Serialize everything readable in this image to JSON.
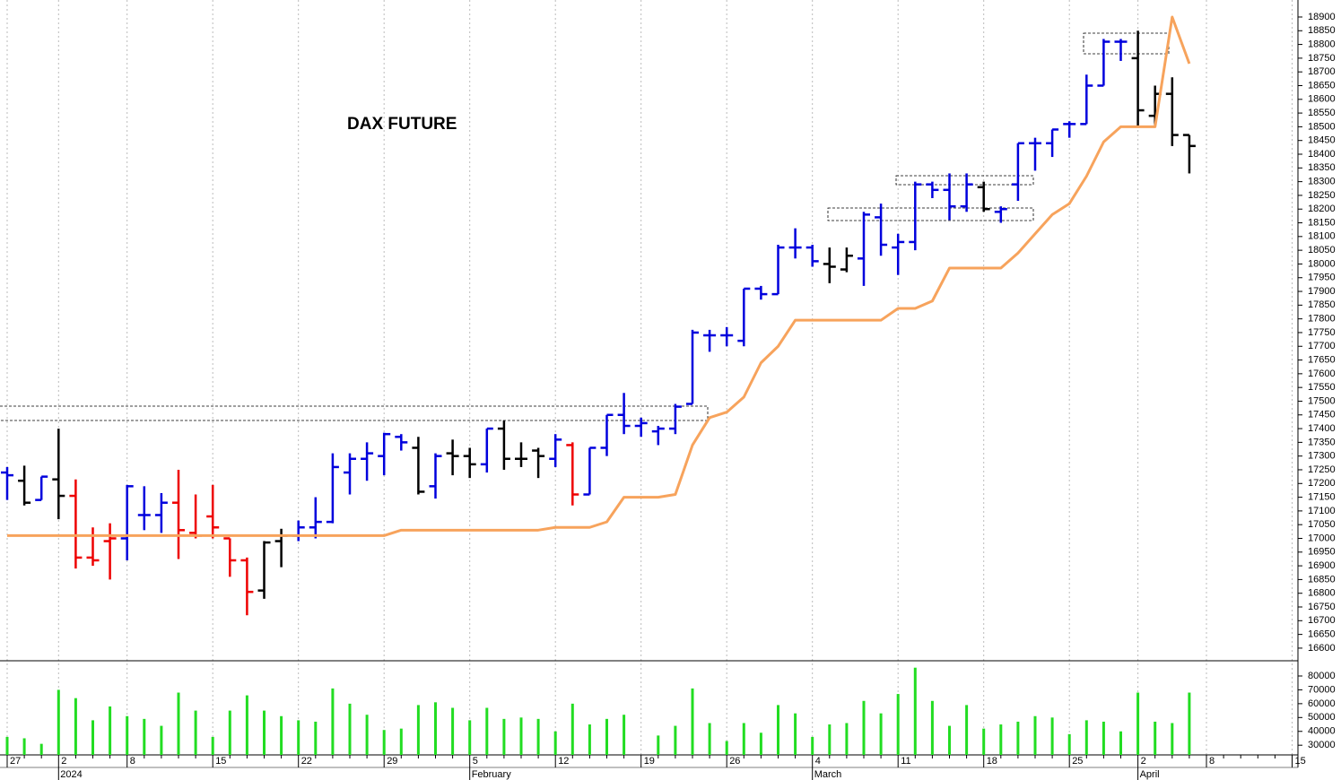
{
  "chart_data": [
    {
      "type": "ohlc",
      "title": "DAX FUTURE",
      "categories": [
        "27",
        null,
        null,
        "2",
        null,
        null,
        null,
        "8",
        null,
        null,
        null,
        null,
        "15",
        null,
        null,
        null,
        null,
        "22",
        null,
        null,
        null,
        null,
        "29",
        null,
        null,
        null,
        null,
        "5",
        null,
        null,
        null,
        null,
        "12",
        null,
        null,
        null,
        null,
        "19",
        null,
        null,
        null,
        null,
        "26",
        null,
        null,
        null,
        null,
        "4",
        null,
        null,
        null,
        null,
        "11",
        null,
        null,
        null,
        null,
        "18",
        null,
        null,
        null,
        null,
        "25",
        null,
        null,
        null,
        "2",
        null,
        null,
        null,
        "8",
        null,
        null,
        null,
        null,
        "15"
      ],
      "periods": [
        null,
        null,
        null,
        "2024",
        null,
        null,
        null,
        null,
        null,
        null,
        null,
        null,
        null,
        null,
        null,
        null,
        null,
        null,
        null,
        null,
        null,
        null,
        null,
        null,
        null,
        null,
        null,
        "February",
        null,
        null,
        null,
        null,
        null,
        null,
        null,
        null,
        null,
        null,
        null,
        null,
        null,
        null,
        null,
        null,
        null,
        null,
        null,
        "March",
        null,
        null,
        null,
        null,
        null,
        null,
        null,
        null,
        null,
        null,
        null,
        null,
        null,
        null,
        null,
        null,
        null,
        null,
        "April",
        null,
        null,
        null,
        null,
        null,
        null,
        null,
        null,
        null
      ],
      "open": [
        17240,
        17210,
        17140,
        17215,
        17155,
        16930,
        16990,
        17000,
        17085,
        17085,
        17130,
        17020,
        17080,
        17000,
        16920,
        16810,
        16990,
        17010,
        17040,
        17060,
        17240,
        17290,
        17300,
        17370,
        17330,
        17190,
        17310,
        17300,
        17270,
        17400,
        17290,
        17320,
        17290,
        17340,
        17160,
        17330,
        17450,
        17410,
        17390,
        17400,
        17490,
        17740,
        17740,
        17720,
        17910,
        17890,
        18060,
        18060,
        18000,
        17980,
        18020,
        18170,
        18060,
        18080,
        18290,
        18270,
        18210,
        18280,
        18190,
        18290,
        18440,
        18440,
        18510,
        18510,
        18650,
        18810,
        18750,
        18540,
        18620,
        18470,
        null,
        null,
        null,
        null,
        null,
        null
      ],
      "high": [
        17260,
        17265,
        17225,
        17400,
        17215,
        17040,
        17055,
        17195,
        17190,
        17165,
        17250,
        17160,
        17195,
        17000,
        16930,
        16990,
        17035,
        17065,
        17150,
        17310,
        17310,
        17350,
        17385,
        17380,
        17370,
        17310,
        17360,
        17330,
        17400,
        17430,
        17350,
        17330,
        17380,
        17350,
        17330,
        17450,
        17530,
        17440,
        17410,
        17490,
        17760,
        17760,
        17770,
        17910,
        17920,
        18070,
        18130,
        18070,
        18060,
        18060,
        18190,
        18220,
        18110,
        18300,
        18300,
        18330,
        18330,
        18300,
        18210,
        18440,
        18460,
        18490,
        18520,
        18690,
        18820,
        18820,
        18850,
        18650,
        18680,
        18470,
        null,
        null,
        null,
        null,
        null,
        null
      ],
      "low": [
        17140,
        17120,
        17140,
        17070,
        16890,
        16900,
        16850,
        16920,
        17030,
        17020,
        16925,
        17000,
        17000,
        16860,
        16720,
        16780,
        16895,
        16990,
        17000,
        17055,
        17160,
        17210,
        17230,
        17320,
        17160,
        17145,
        17230,
        17220,
        17240,
        17250,
        17260,
        17220,
        17260,
        17120,
        17160,
        17300,
        17380,
        17370,
        17340,
        17380,
        17490,
        17680,
        17700,
        17700,
        17870,
        17890,
        18020,
        17990,
        17930,
        17970,
        17920,
        18030,
        17960,
        18050,
        18240,
        18160,
        18190,
        18190,
        18150,
        18230,
        18340,
        18390,
        18460,
        18510,
        18650,
        18740,
        18500,
        18500,
        18430,
        18330,
        null,
        null,
        null,
        null,
        null,
        null
      ],
      "close": [
        17230,
        17130,
        17225,
        17155,
        16930,
        16920,
        17000,
        17190,
        17085,
        17130,
        17030,
        17010,
        17040,
        16920,
        16805,
        16985,
        17010,
        17040,
        17060,
        17260,
        17290,
        17310,
        17380,
        17350,
        17170,
        17300,
        17300,
        17270,
        17400,
        17290,
        17290,
        17300,
        17360,
        17160,
        17330,
        17450,
        17410,
        17420,
        17400,
        17480,
        17750,
        17740,
        17740,
        17910,
        17890,
        18060,
        18060,
        18010,
        17990,
        18030,
        18180,
        18070,
        18080,
        18290,
        18270,
        18210,
        18290,
        18200,
        18200,
        18440,
        18440,
        18490,
        18510,
        18650,
        18810,
        18810,
        18560,
        18620,
        18470,
        18430,
        null,
        null,
        null,
        null,
        null,
        null
      ],
      "bar_colors": [
        "#0000dd",
        "#000000",
        "#0000dd",
        "#000000",
        "#ee0000",
        "#ee0000",
        "#ee0000",
        "#0000dd",
        "#0000dd",
        "#0000dd",
        "#ee0000",
        "#ee0000",
        "#ee0000",
        "#ee0000",
        "#ee0000",
        "#000000",
        "#000000",
        "#0000dd",
        "#0000dd",
        "#0000dd",
        "#0000dd",
        "#0000dd",
        "#0000dd",
        "#0000dd",
        "#000000",
        "#0000dd",
        "#000000",
        "#000000",
        "#0000dd",
        "#000000",
        "#000000",
        "#000000",
        "#0000dd",
        "#ee0000",
        "#0000dd",
        "#0000dd",
        "#0000dd",
        "#0000dd",
        "#0000dd",
        "#0000dd",
        "#0000dd",
        "#0000dd",
        "#0000dd",
        "#0000dd",
        "#0000dd",
        "#0000dd",
        "#0000dd",
        "#0000dd",
        "#000000",
        "#000000",
        "#0000dd",
        "#0000dd",
        "#0000dd",
        "#0000dd",
        "#0000dd",
        "#0000dd",
        "#0000dd",
        "#000000",
        "#0000dd",
        "#0000dd",
        "#0000dd",
        "#0000dd",
        "#0000dd",
        "#0000dd",
        "#0000dd",
        "#0000dd",
        "#000000",
        "#000000",
        "#000000",
        "#000000",
        null,
        null,
        null,
        null,
        null,
        null
      ],
      "overlay": {
        "color": "#f7a35c",
        "values": [
          17010,
          17010,
          17010,
          17010,
          17010,
          17010,
          17010,
          17010,
          17010,
          17010,
          17010,
          17010,
          17010,
          17010,
          17010,
          17010,
          17010,
          17010,
          17010,
          17010,
          17010,
          17010,
          17010,
          17030,
          17030,
          17030,
          17030,
          17030,
          17030,
          17030,
          17030,
          17030,
          17040,
          17040,
          17040,
          17060,
          17150,
          17150,
          17150,
          17160,
          17340,
          17440,
          17460,
          17515,
          17640,
          17700,
          17795,
          17795,
          17795,
          17795,
          17795,
          17795,
          17838,
          17838,
          17865,
          17985,
          17985,
          17985,
          17985,
          18040,
          18110,
          18180,
          18220,
          18320,
          18445,
          18500,
          18500,
          18500,
          18900,
          18730,
          null,
          null,
          null,
          null,
          null,
          null
        ]
      },
      "ylim": [
        16554,
        18962
      ],
      "yticks": [
        16600,
        16650,
        16700,
        16750,
        16800,
        16850,
        16900,
        16950,
        17000,
        17050,
        17100,
        17150,
        17200,
        17250,
        17300,
        17350,
        17400,
        17450,
        17500,
        17550,
        17600,
        17650,
        17700,
        17750,
        17800,
        17850,
        17900,
        17950,
        18000,
        18050,
        18100,
        18150,
        18200,
        18250,
        18300,
        18350,
        18400,
        18450,
        18500,
        18550,
        18600,
        18650,
        18700,
        18750,
        18800,
        18850,
        18900
      ],
      "xgrid": true
    },
    {
      "type": "bar",
      "color": "#22dd22",
      "values": [
        36000,
        35000,
        31000,
        70000,
        64000,
        48000,
        58000,
        51000,
        49000,
        44000,
        68000,
        55000,
        36000,
        55000,
        66000,
        55000,
        51000,
        48000,
        47000,
        71000,
        60000,
        52000,
        41000,
        42000,
        59000,
        61000,
        57000,
        48000,
        57000,
        49000,
        50000,
        49000,
        40000,
        60000,
        45000,
        49000,
        52000,
        null,
        37000,
        44000,
        71000,
        46000,
        33000,
        46000,
        39000,
        59000,
        53000,
        36000,
        45000,
        46000,
        62000,
        53000,
        67000,
        86000,
        62000,
        44000,
        59000,
        42000,
        45000,
        47000,
        51000,
        50000,
        38000,
        48000,
        47000,
        40000,
        68000,
        47000,
        46000,
        68000,
        null,
        null,
        null,
        null,
        null,
        null
      ],
      "ylim": [
        23000,
        91000
      ],
      "yticks": [
        30000,
        40000,
        50000,
        60000,
        70000,
        80000
      ]
    }
  ]
}
